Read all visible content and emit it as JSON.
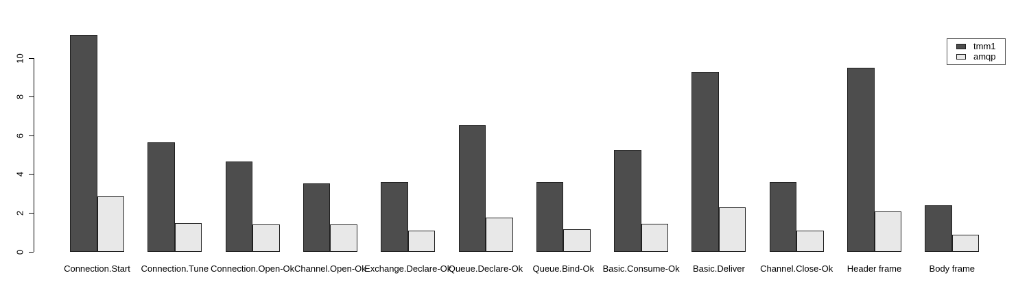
{
  "chart_data": {
    "type": "bar",
    "title": "",
    "xlabel": "",
    "ylabel": "",
    "categories": [
      "Connection.Start",
      "Connection.Tune",
      "Connection.Open-Ok",
      "Channel.Open-Ok",
      "Exchange.Declare-Ok",
      "Queue.Declare-Ok",
      "Queue.Bind-Ok",
      "Basic.Consume-Ok",
      "Basic.Deliver",
      "Channel.Close-Ok",
      "Header frame",
      "Body frame"
    ],
    "series": [
      {
        "name": "tmm1",
        "color": "#4d4d4d",
        "values": [
          11.2,
          5.65,
          4.65,
          3.55,
          3.6,
          6.55,
          3.6,
          5.25,
          9.3,
          3.6,
          9.5,
          2.4
        ]
      },
      {
        "name": "amqp",
        "color": "#e8e8e8",
        "values": [
          2.85,
          1.5,
          1.4,
          1.4,
          1.1,
          1.75,
          1.15,
          1.45,
          2.3,
          1.1,
          2.1,
          0.9
        ]
      }
    ],
    "yticks": [
      0,
      2,
      4,
      6,
      8,
      10
    ],
    "ylim": [
      0,
      11.33
    ],
    "grid": false,
    "legend_position": "top-right",
    "bar_border_color": "#1f1f1f",
    "background_color": "#ffffff"
  }
}
